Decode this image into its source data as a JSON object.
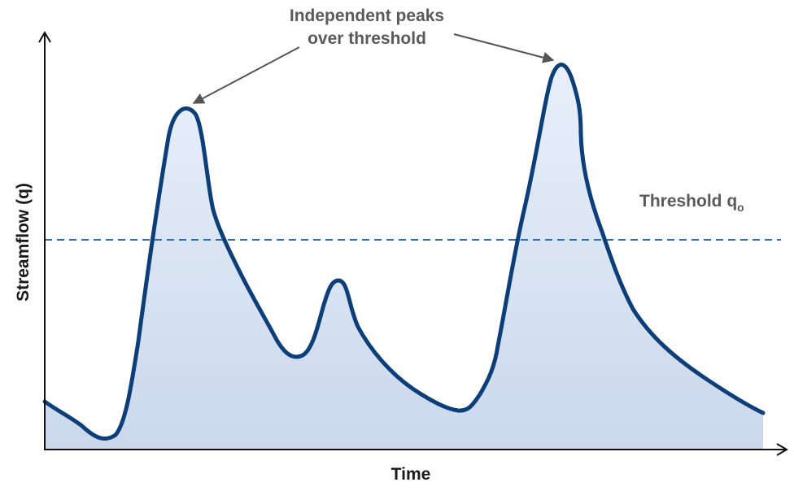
{
  "diagram": {
    "x_axis_label": "Time",
    "y_axis_label": "Streamflow (q)",
    "annotation": {
      "line1": "Independent peaks",
      "line2": "over threshold"
    },
    "threshold_label": {
      "text": "Threshold q",
      "subscript": "o"
    },
    "colors": {
      "hydrograph_stroke": "#0c3e7a",
      "fill_top": "#e8f0fa",
      "fill_bottom": "#cbd8ec",
      "threshold_line": "#2a6fb0",
      "arrow": "#555555",
      "axis": "#111111",
      "label_text": "#5a5a5a"
    }
  }
}
